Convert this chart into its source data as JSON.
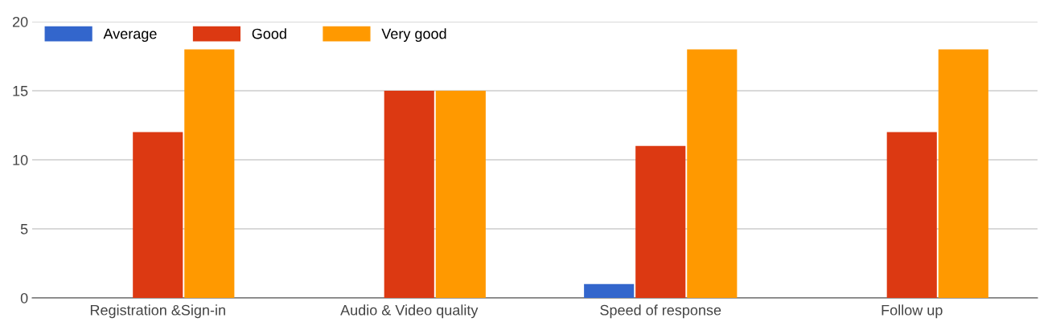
{
  "chart_data": {
    "type": "bar",
    "categories": [
      "Registration &Sign-in",
      "Audio & Video quality",
      "Speed of response",
      "Follow up"
    ],
    "series": [
      {
        "name": "Average",
        "color": "#3366cc",
        "values": [
          0,
          0,
          1,
          0
        ]
      },
      {
        "name": "Good",
        "color": "#dc3912",
        "values": [
          12,
          15,
          11,
          12
        ]
      },
      {
        "name": "Very good",
        "color": "#ff9900",
        "values": [
          18,
          15,
          18,
          18
        ]
      }
    ],
    "ylim": [
      0,
      20
    ],
    "yticks": [
      0,
      5,
      10,
      15,
      20
    ],
    "grid": "y",
    "legend": "top left"
  }
}
